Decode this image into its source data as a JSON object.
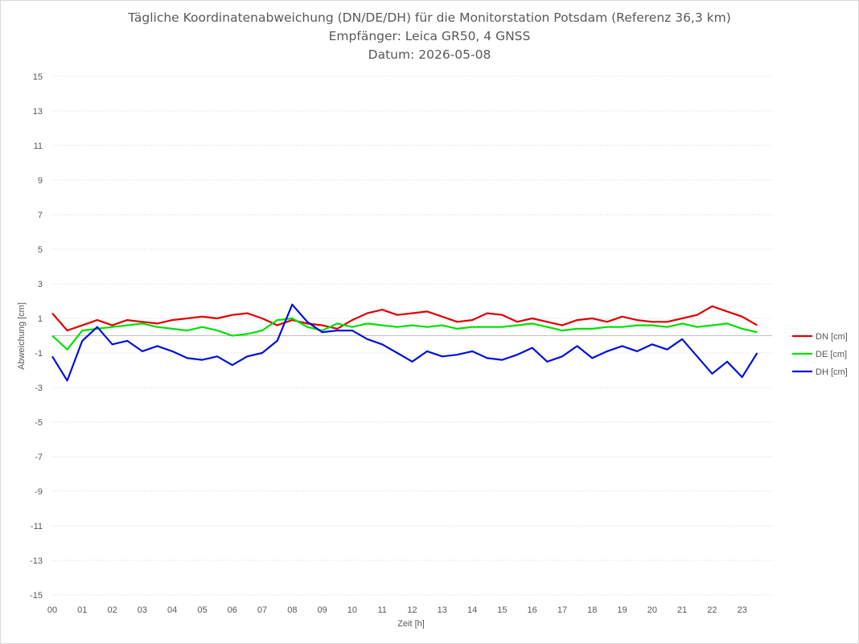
{
  "chart_data": {
    "type": "line",
    "title": "Tägliche Koordinatenabweichung (DN/DE/DH) für die Monitorstation Potsdam (Referenz 36,3 km)",
    "subtitle": "Empfänger: Leica GR50, 4 GNSS",
    "date_line": "Datum: 2026-05-08",
    "xlabel": "Zeit [h]",
    "ylabel": "Abweichung [cm]",
    "xlim": [
      0,
      24
    ],
    "ylim": [
      -15,
      15
    ],
    "x_ticks": [
      "00",
      "01",
      "02",
      "03",
      "04",
      "05",
      "06",
      "07",
      "08",
      "09",
      "10",
      "11",
      "12",
      "13",
      "14",
      "15",
      "16",
      "17",
      "18",
      "19",
      "20",
      "21",
      "22",
      "23"
    ],
    "y_ticks": [
      "15",
      "13",
      "11",
      "9",
      "7",
      "5",
      "3",
      "1",
      "-1",
      "-3",
      "-5",
      "-7",
      "-9",
      "-11",
      "-13",
      "-15"
    ],
    "grid": "horizontal dotted",
    "legend_position": "right",
    "x_step_hours": 0.5,
    "series": [
      {
        "name": "DN [cm]",
        "color": "#e00000",
        "values": [
          1.3,
          0.3,
          0.6,
          0.9,
          0.6,
          0.9,
          0.8,
          0.7,
          0.9,
          1.0,
          1.1,
          1.0,
          1.2,
          1.3,
          1.0,
          0.6,
          0.9,
          0.7,
          0.6,
          0.4,
          0.9,
          1.3,
          1.5,
          1.2,
          1.3,
          1.4,
          1.1,
          0.8,
          0.9,
          1.3,
          1.2,
          0.8,
          1.0,
          0.8,
          0.6,
          0.9,
          1.0,
          0.8,
          1.1,
          0.9,
          0.8,
          0.8,
          1.0,
          1.2,
          1.7,
          1.4,
          1.1,
          0.6
        ]
      },
      {
        "name": "DE [cm]",
        "color": "#00e000",
        "values": [
          0.0,
          -0.8,
          0.3,
          0.4,
          0.5,
          0.6,
          0.7,
          0.5,
          0.4,
          0.3,
          0.5,
          0.3,
          0.0,
          0.1,
          0.3,
          0.9,
          1.0,
          0.5,
          0.3,
          0.7,
          0.5,
          0.7,
          0.6,
          0.5,
          0.6,
          0.5,
          0.6,
          0.4,
          0.5,
          0.5,
          0.5,
          0.6,
          0.7,
          0.5,
          0.3,
          0.4,
          0.4,
          0.5,
          0.5,
          0.6,
          0.6,
          0.5,
          0.7,
          0.5,
          0.6,
          0.7,
          0.4,
          0.2
        ]
      },
      {
        "name": "DH [cm]",
        "color": "#0010dd",
        "values": [
          -1.2,
          -2.6,
          -0.3,
          0.5,
          -0.5,
          -0.3,
          -0.9,
          -0.6,
          -0.9,
          -1.3,
          -1.4,
          -1.2,
          -1.7,
          -1.2,
          -1.0,
          -0.3,
          1.8,
          0.8,
          0.2,
          0.3,
          0.3,
          -0.2,
          -0.5,
          -1.0,
          -1.5,
          -0.9,
          -1.2,
          -1.1,
          -0.9,
          -1.3,
          -1.4,
          -1.1,
          -0.7,
          -1.5,
          -1.2,
          -0.6,
          -1.3,
          -0.9,
          -0.6,
          -0.9,
          -0.5,
          -0.8,
          -0.2,
          -1.2,
          -2.2,
          -1.5,
          -2.4,
          -1.0
        ]
      }
    ]
  }
}
